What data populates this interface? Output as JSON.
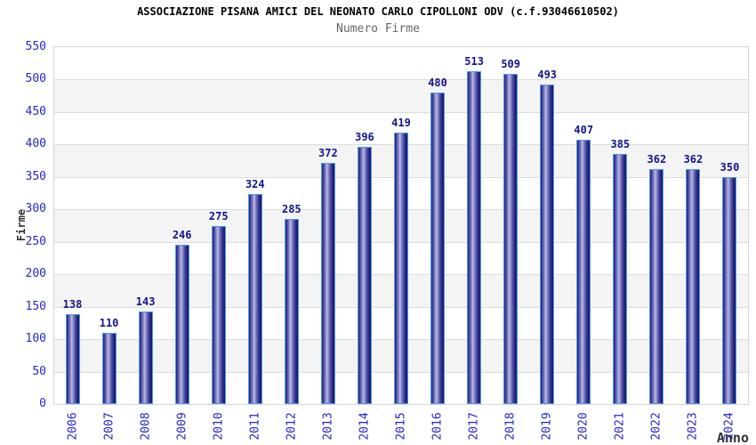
{
  "chart_data": {
    "type": "bar",
    "title": "ASSOCIAZIONE PISANA AMICI DEL NEONATO CARLO CIPOLLONI ODV (c.f.93046610502)",
    "subtitle": "Numero Firme",
    "xlabel": "Anno",
    "ylabel": "Firme",
    "categories": [
      "2006",
      "2007",
      "2008",
      "2009",
      "2010",
      "2011",
      "2012",
      "2013",
      "2014",
      "2015",
      "2016",
      "2017",
      "2018",
      "2019",
      "2020",
      "2021",
      "2022",
      "2023",
      "2024"
    ],
    "values": [
      138,
      110,
      143,
      246,
      275,
      324,
      285,
      372,
      396,
      419,
      480,
      513,
      509,
      493,
      407,
      385,
      362,
      362,
      350
    ],
    "ylim": [
      0,
      550
    ],
    "ytick_step": 50,
    "yticks": [
      0,
      50,
      100,
      150,
      200,
      250,
      300,
      350,
      400,
      450,
      500,
      550
    ],
    "grid": "horizontal-bands",
    "legend": "none"
  },
  "colors": {
    "bar_edge": "#4f9de0",
    "bar_dark": "#222284",
    "bar_highlight": "#bcbce6",
    "value_label": "#14148c",
    "tick_text": "#2626cc",
    "axis_title_text": "#333333",
    "subtitle_text": "#666666",
    "band_alt": "#f4f4f4",
    "gridline": "#dcdcdc",
    "background": "#ffffff"
  }
}
